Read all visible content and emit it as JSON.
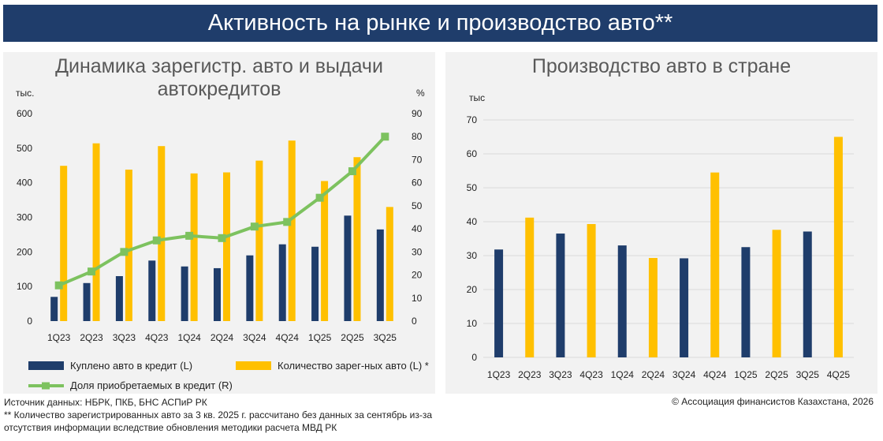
{
  "header": {
    "title": "Активность на рынке и производство авто**"
  },
  "colors": {
    "navy": "#1f3d6b",
    "gold": "#ffc000",
    "green": "#7dc25f",
    "grid": "#d9d9d9"
  },
  "left_chart": {
    "unit_left": "тыс.",
    "unit_right": "%"
  },
  "right_chart": {
    "unit": "тыс"
  },
  "footer": {
    "source": "Источник данных: НБРК, ПКБ, БНС АСПиР РК",
    "note_line1": "** Количество зарегистрированных авто за 3 кв. 2025 г.  рассчитано без данных за сентябрь из-за",
    "note_line2": "отсутствия информации вследствие обновления методики расчета МВД РК",
    "copyright": "© Ассоциация финансистов Казахстана, 2026"
  },
  "chart_data": [
    {
      "type": "bar",
      "title": "Динамика зарегистр. авто и выдачи автокредитов",
      "categories": [
        "1Q23",
        "2Q23",
        "3Q23",
        "4Q23",
        "1Q24",
        "2Q24",
        "3Q24",
        "4Q24",
        "1Q25",
        "2Q25",
        "3Q25"
      ],
      "ylim": [
        0,
        600
      ],
      "y2lim": [
        0,
        90
      ],
      "yticks": [
        "0",
        "100",
        "200",
        "300",
        "400",
        "500",
        "600"
      ],
      "y2ticks": [
        "0",
        "10",
        "20",
        "30",
        "40",
        "50",
        "60",
        "70",
        "80",
        "90"
      ],
      "series": [
        {
          "name": "Куплено авто в кредит (L)",
          "type": "bar",
          "axis": "left",
          "color": "#1f3d6b",
          "values": [
            70,
            110,
            130,
            175,
            158,
            153,
            190,
            222,
            215,
            305,
            265
          ]
        },
        {
          "name": "Количество зарег-ных авто (L) *",
          "type": "bar",
          "axis": "left",
          "color": "#ffc000",
          "values": [
            449,
            514,
            438,
            506,
            427,
            430,
            464,
            522,
            405,
            474,
            330
          ]
        },
        {
          "name": "Доля приобретаемых в кредит (R)",
          "type": "line",
          "axis": "right",
          "color": "#7dc25f",
          "values": [
            15.5,
            21.5,
            30,
            35,
            37,
            36,
            41,
            43,
            53.5,
            65,
            80
          ]
        }
      ],
      "legend": "bottom",
      "grid": false
    },
    {
      "type": "bar",
      "title": "Производство авто в стране",
      "categories": [
        "1Q23",
        "2Q23",
        "3Q23",
        "4Q23",
        "1Q24",
        "2Q24",
        "3Q24",
        "4Q24",
        "1Q25",
        "2Q25",
        "3Q25",
        "4Q25"
      ],
      "ylim": [
        0,
        70
      ],
      "yticks": [
        "0",
        "10",
        "20",
        "30",
        "40",
        "50",
        "60",
        "70"
      ],
      "values": [
        31.8,
        41.2,
        36.5,
        39.3,
        33,
        29.3,
        29.2,
        54.5,
        32.5,
        37.6,
        37.1,
        65
      ],
      "colors": [
        "#1f3d6b",
        "#ffc000",
        "#1f3d6b",
        "#ffc000",
        "#1f3d6b",
        "#ffc000",
        "#1f3d6b",
        "#ffc000",
        "#1f3d6b",
        "#ffc000",
        "#1f3d6b",
        "#ffc000"
      ],
      "grid": true
    }
  ]
}
